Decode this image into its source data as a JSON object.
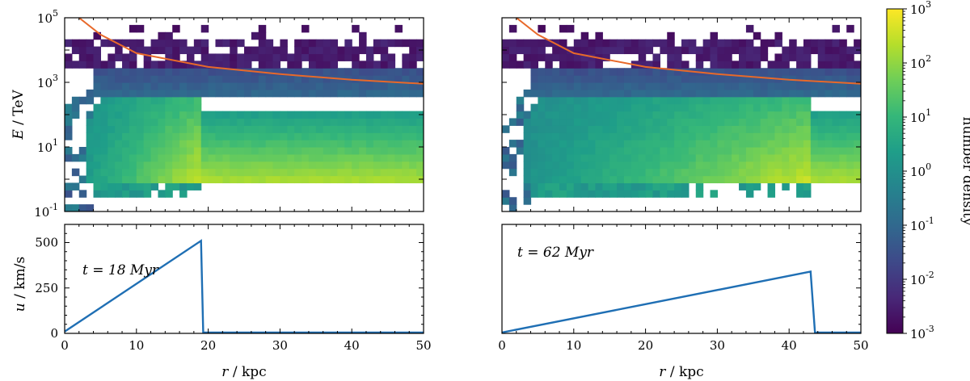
{
  "chart_data": [
    {
      "type": "heatmap",
      "panel": "top-left",
      "title": "",
      "xlabel": "",
      "ylabel": "E / TeV",
      "yscale": "log",
      "ylim_exp": [
        -1,
        5
      ],
      "ytick_exponents": [
        "5",
        "3",
        "1",
        "-1"
      ],
      "xlim": [
        0,
        50
      ],
      "shock_radius": 19,
      "cutoff_curve": [
        [
          2,
          100000
        ],
        [
          5,
          30000
        ],
        [
          10,
          8000
        ],
        [
          20,
          3000
        ],
        [
          30,
          1800
        ],
        [
          40,
          1200
        ],
        [
          50,
          900
        ]
      ]
    },
    {
      "type": "heatmap",
      "panel": "top-right",
      "xlim": [
        0,
        50
      ],
      "yscale": "log",
      "ylim_exp": [
        -1,
        5
      ],
      "shock_radius": 43.5,
      "cutoff_curve": [
        [
          2,
          100000
        ],
        [
          5,
          30000
        ],
        [
          10,
          8000
        ],
        [
          20,
          3000
        ],
        [
          30,
          1800
        ],
        [
          40,
          1200
        ],
        [
          50,
          900
        ]
      ]
    },
    {
      "type": "line",
      "panel": "bottom-left",
      "annotation": "t = 18 Myr",
      "ylabel": "u / km/s",
      "xlabel": "r / kpc",
      "xlim": [
        0,
        50
      ],
      "ylim": [
        0,
        600
      ],
      "xticks": [
        "0",
        "10",
        "20",
        "30",
        "40",
        "50"
      ],
      "yticks": [
        "0",
        "250",
        "500"
      ],
      "series": [
        {
          "name": "velocity",
          "x": [
            0,
            19,
            19.3,
            50
          ],
          "y": [
            10,
            510,
            5,
            5
          ]
        }
      ]
    },
    {
      "type": "line",
      "panel": "bottom-right",
      "annotation": "t = 62 Myr",
      "xlabel": "r / kpc",
      "xlim": [
        0,
        50
      ],
      "ylim": [
        0,
        600
      ],
      "xticks": [
        "0",
        "10",
        "20",
        "30",
        "40",
        "50"
      ],
      "series": [
        {
          "name": "velocity",
          "x": [
            0,
            43,
            43.6,
            50
          ],
          "y": [
            5,
            340,
            5,
            5
          ]
        }
      ]
    }
  ],
  "colorbar": {
    "label": "number density",
    "tick_exponents": [
      "3",
      "2",
      "1",
      "0",
      "-1",
      "-2",
      "-3"
    ]
  },
  "colors": {
    "line": "#1f6fb4",
    "curve": "#e8692a",
    "viridis": [
      "#440154",
      "#482878",
      "#3e4989",
      "#31688e",
      "#26828e",
      "#1f9e89",
      "#35b779",
      "#6ece58",
      "#b5de2b",
      "#fde725"
    ]
  }
}
